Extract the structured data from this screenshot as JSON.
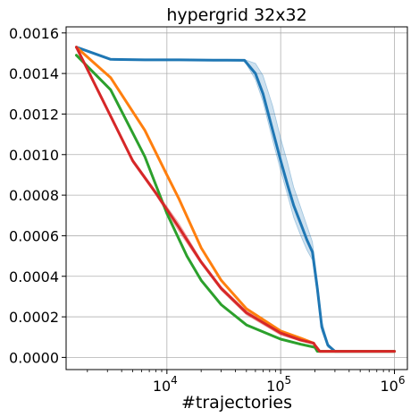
{
  "chart_data": {
    "type": "line",
    "title": "hypergrid 32x32",
    "xlabel": "#trajectories",
    "ylabel": "",
    "x_scale": "log",
    "xlim": [
      1300,
      1300000
    ],
    "ylim": [
      -6e-05,
      0.00163
    ],
    "grid": true,
    "legend": "none",
    "x_ticks": [
      {
        "value": 10000,
        "base": "10",
        "exp": "4"
      },
      {
        "value": 100000,
        "base": "10",
        "exp": "5"
      },
      {
        "value": 1000000,
        "base": "10",
        "exp": "6"
      }
    ],
    "y_ticks": [
      {
        "value": 0.0,
        "label": "0.0000"
      },
      {
        "value": 0.0002,
        "label": "0.0002"
      },
      {
        "value": 0.0004,
        "label": "0.0004"
      },
      {
        "value": 0.0006,
        "label": "0.0006"
      },
      {
        "value": 0.0008,
        "label": "0.0008"
      },
      {
        "value": 0.001,
        "label": "0.0010"
      },
      {
        "value": 0.0012,
        "label": "0.0012"
      },
      {
        "value": 0.0014,
        "label": "0.0014"
      },
      {
        "value": 0.0016,
        "label": "0.0016"
      }
    ],
    "series": [
      {
        "color": "#1f77b4",
        "x": [
          1600,
          3200,
          6400,
          12800,
          25600,
          48000,
          60000,
          70000,
          85000,
          100000,
          115000,
          130000,
          150000,
          170000,
          190000,
          210000,
          230000,
          260000,
          300000,
          400000,
          600000,
          1000000
        ],
        "y": [
          0.00153,
          0.00147,
          0.001467,
          0.001467,
          0.001466,
          0.001465,
          0.0014,
          0.0013,
          0.00112,
          0.00097,
          0.00085,
          0.00075,
          0.00066,
          0.00058,
          0.00052,
          0.00034,
          0.00015,
          6e-05,
          3e-05,
          3e-05,
          3e-05,
          3e-05
        ],
        "band_lower": [
          0.00153,
          0.00147,
          0.001465,
          0.001465,
          0.001464,
          0.001462,
          0.00137,
          0.00126,
          0.00107,
          0.00092,
          0.0008,
          0.00069,
          0.0006,
          0.00053,
          0.00048,
          0.00031,
          0.00013,
          5e-05,
          3e-05,
          3e-05,
          3e-05,
          3e-05
        ],
        "band_upper": [
          0.00153,
          0.00147,
          0.001469,
          0.001469,
          0.001469,
          0.001469,
          0.00145,
          0.00139,
          0.00124,
          0.00108,
          0.00096,
          0.00084,
          0.00074,
          0.00065,
          0.00057,
          0.00038,
          0.00018,
          7e-05,
          3e-05,
          3e-05,
          3e-05,
          3e-05
        ]
      },
      {
        "color": "#ff7f0e",
        "x": [
          1600,
          3200,
          6400,
          10000,
          12800,
          20000,
          30000,
          50000,
          100000,
          150000,
          195000,
          200000,
          220000,
          300000,
          500000,
          1000000
        ],
        "y": [
          0.00153,
          0.00138,
          0.00112,
          0.0009,
          0.00078,
          0.00054,
          0.00038,
          0.00024,
          0.00013,
          9.5e-05,
          7e-05,
          6e-05,
          3e-05,
          3e-05,
          3e-05,
          3e-05
        ]
      },
      {
        "color": "#2ca02c",
        "x": [
          1600,
          3200,
          6400,
          10000,
          15000,
          20000,
          30000,
          50000,
          100000,
          150000,
          200000,
          210000,
          230000,
          300000,
          500000,
          1000000
        ],
        "y": [
          0.00149,
          0.00132,
          0.00099,
          0.00071,
          0.0005,
          0.00038,
          0.00026,
          0.00016,
          9e-05,
          6.5e-05,
          5e-05,
          3e-05,
          3e-05,
          3e-05,
          3e-05,
          3e-05
        ]
      },
      {
        "color": "#d62728",
        "x": [
          1600,
          3200,
          5000,
          8000,
          12800,
          20000,
          30000,
          50000,
          100000,
          150000,
          195000,
          200000,
          220000,
          300000,
          500000,
          1000000
        ],
        "y": [
          0.00153,
          0.00119,
          0.00097,
          0.00081,
          0.00064,
          0.00047,
          0.00034,
          0.00022,
          0.00012,
          8.5e-05,
          7e-05,
          6e-05,
          3e-05,
          3e-05,
          3e-05,
          3e-05
        ],
        "band_lower": [
          0.00153,
          0.00119,
          0.00096,
          0.0008,
          0.00062,
          0.00046,
          0.00033,
          0.00021,
          0.00011,
          8e-05,
          6.5e-05,
          5.5e-05,
          3e-05,
          3e-05,
          3e-05,
          3e-05
        ],
        "band_upper": [
          0.00153,
          0.00119,
          0.00098,
          0.00082,
          0.00066,
          0.00048,
          0.00035,
          0.00023,
          0.00013,
          9e-05,
          7.5e-05,
          6.5e-05,
          3e-05,
          3e-05,
          3e-05,
          3e-05
        ]
      }
    ]
  }
}
